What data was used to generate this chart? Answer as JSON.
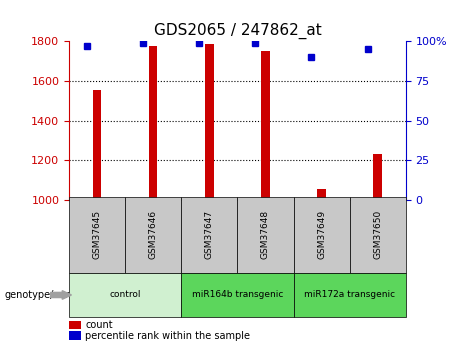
{
  "title": "GDS2065 / 247862_at",
  "samples": [
    "GSM37645",
    "GSM37646",
    "GSM37647",
    "GSM37648",
    "GSM37649",
    "GSM37650"
  ],
  "counts": [
    1557,
    1775,
    1785,
    1750,
    1058,
    1230
  ],
  "percentile_ranks": [
    97,
    99,
    99,
    99,
    90,
    95
  ],
  "ylim_left": [
    1000,
    1800
  ],
  "yticks_left": [
    1000,
    1200,
    1400,
    1600,
    1800
  ],
  "ylim_right": [
    0,
    100
  ],
  "yticks_right": [
    0,
    25,
    50,
    75,
    100
  ],
  "bar_color": "#cc0000",
  "dot_color": "#0000cc",
  "bar_width": 0.15,
  "background_color": "#ffffff",
  "title_fontsize": 11,
  "axis_label_color_left": "#cc0000",
  "axis_label_color_right": "#0000cc",
  "genotype_label": "genotype/variation",
  "sample_box_color": "#c8c8c8",
  "group_colors": [
    "#d0f0d0",
    "#5cd65c",
    "#5cd65c"
  ],
  "groups": [
    {
      "label": "control",
      "start": 0,
      "end": 1
    },
    {
      "label": "miR164b transgenic",
      "start": 2,
      "end": 3
    },
    {
      "label": "miR172a transgenic",
      "start": 4,
      "end": 5
    }
  ]
}
